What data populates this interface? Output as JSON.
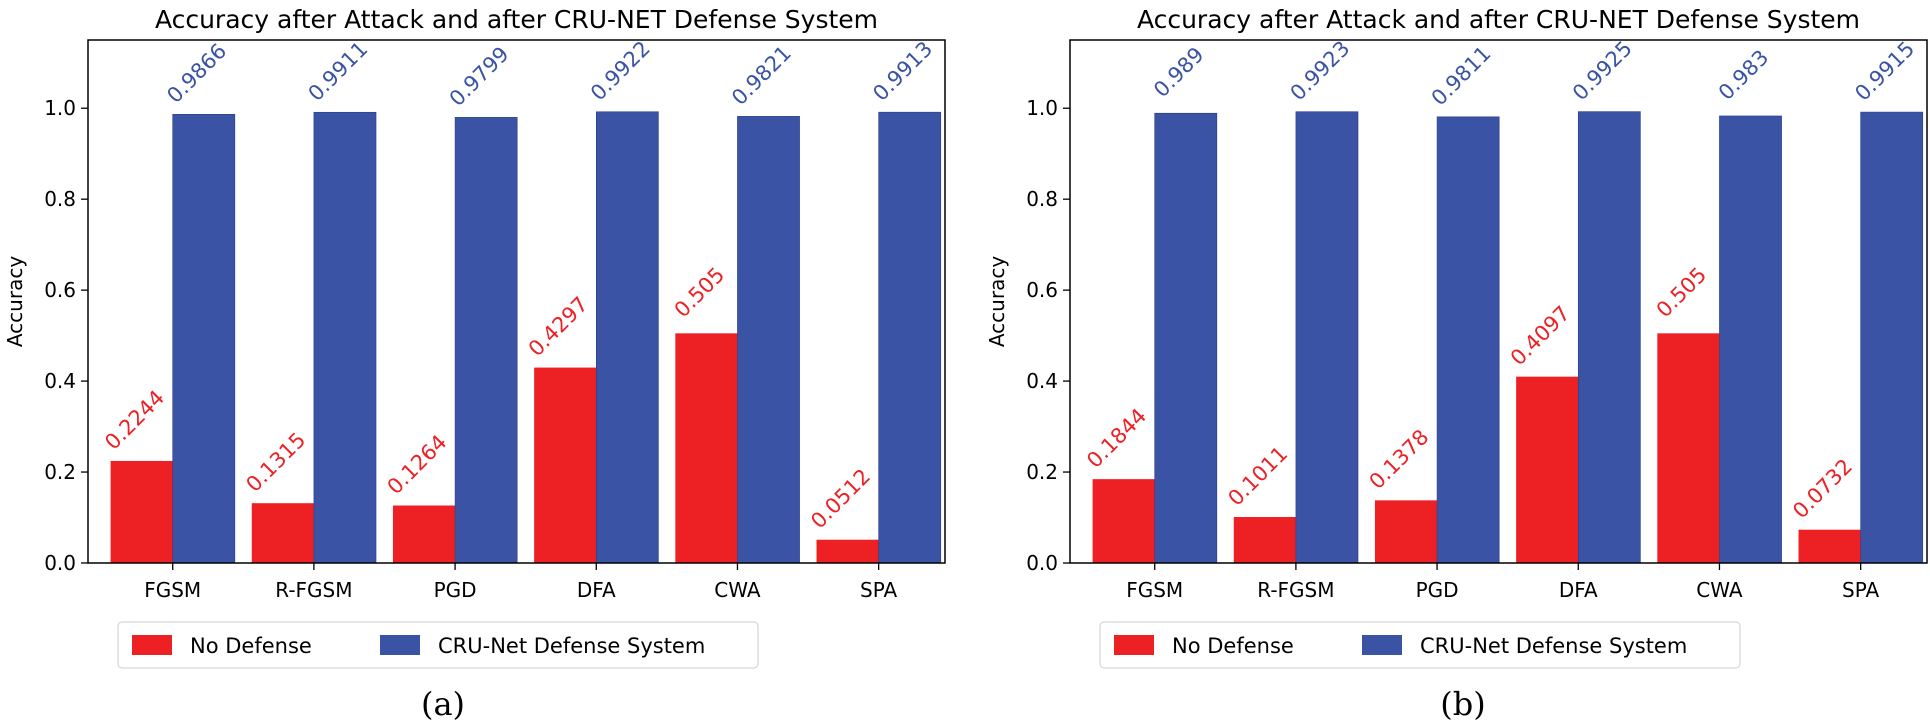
{
  "chart_data": [
    {
      "type": "bar",
      "title": "Accuracy after Attack and after CRU-NET Defense System",
      "xlabel": "",
      "ylabel": "Accuracy",
      "ylim": [
        0,
        1.15
      ],
      "yticks": [
        "0.0",
        "0.2",
        "0.4",
        "0.6",
        "0.8",
        "1.0"
      ],
      "categories": [
        "FGSM",
        "R-FGSM",
        "PGD",
        "DFA",
        "CWA",
        "SPA"
      ],
      "series": [
        {
          "name": "No Defense",
          "color": "#ed2024",
          "values": [
            0.2244,
            0.1315,
            0.1264,
            0.4297,
            0.505,
            0.0512
          ],
          "labels": [
            "0.2244",
            "0.1315",
            "0.1264",
            "0.4297",
            "0.505",
            "0.0512"
          ]
        },
        {
          "name": "CRU-Net Defense System",
          "color": "#3a53a4",
          "values": [
            0.9866,
            0.9911,
            0.9799,
            0.9922,
            0.9821,
            0.9913
          ],
          "labels": [
            "0.9866",
            "0.9911",
            "0.9799",
            "0.9922",
            "0.9821",
            "0.9913"
          ]
        }
      ],
      "legend_position": "bottom-left",
      "caption": "(a)"
    },
    {
      "type": "bar",
      "title": "Accuracy after Attack and after CRU-NET Defense System",
      "xlabel": "",
      "ylabel": "Accuracy",
      "ylim": [
        0,
        1.15
      ],
      "yticks": [
        "0.0",
        "0.2",
        "0.4",
        "0.6",
        "0.8",
        "1.0"
      ],
      "categories": [
        "FGSM",
        "R-FGSM",
        "PGD",
        "DFA",
        "CWA",
        "SPA"
      ],
      "series": [
        {
          "name": "No Defense",
          "color": "#ed2024",
          "values": [
            0.1844,
            0.1011,
            0.1378,
            0.4097,
            0.505,
            0.0732
          ],
          "labels": [
            "0.1844",
            "0.1011",
            "0.1378",
            "0.4097",
            "0.505",
            "0.0732"
          ]
        },
        {
          "name": "CRU-Net Defense System",
          "color": "#3a53a4",
          "values": [
            0.989,
            0.9923,
            0.9811,
            0.9925,
            0.983,
            0.9915
          ],
          "labels": [
            "0.989",
            "0.9923",
            "0.9811",
            "0.9925",
            "0.983",
            "0.9915"
          ]
        }
      ],
      "legend_position": "bottom-left",
      "caption": "(b)"
    }
  ]
}
